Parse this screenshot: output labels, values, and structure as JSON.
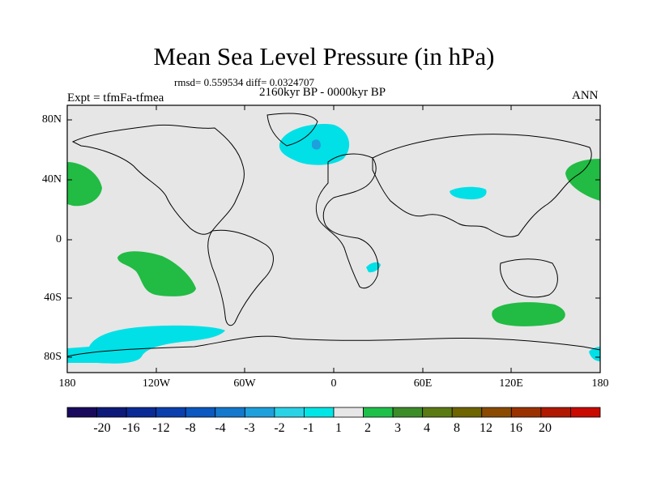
{
  "title": "Mean Sea Level Pressure (in hPa)",
  "stats_line": "rmsd= 0.559534 diff= 0.0324707",
  "period": "2160kyr BP - 0000kyr BP",
  "experiment": "Expt = tfmFa-tfmea",
  "season": "ANN",
  "lat_ticks": [
    "80N",
    "40N",
    "0",
    "40S",
    "80S"
  ],
  "lon_ticks": [
    "180",
    "120W",
    "60W",
    "0",
    "60E",
    "120E",
    "180"
  ],
  "colorbar": {
    "labels": [
      "-20",
      "-16",
      "-12",
      "-8",
      "-4",
      "-3",
      "-2",
      "-1",
      "1",
      "2",
      "3",
      "4",
      "8",
      "12",
      "16",
      "20"
    ],
    "colors": [
      "#1a0a5e",
      "#0d1a7a",
      "#0a2a96",
      "#0a3fae",
      "#0a58c0",
      "#1478cc",
      "#1ea0dc",
      "#2ad2e6",
      "#00e6e6",
      "#e6e6e6",
      "#1fc04a",
      "#3c8c28",
      "#5a7a14",
      "#6e6400",
      "#8a4a00",
      "#9a3200",
      "#b01800",
      "#c80a00"
    ]
  },
  "map_colors": {
    "background": "#e6e6e6",
    "negative_anomaly": "#00e0e6",
    "strong_negative": "#1ea0dc",
    "positive_anomaly": "#22bb44",
    "coastline": "#000000"
  }
}
